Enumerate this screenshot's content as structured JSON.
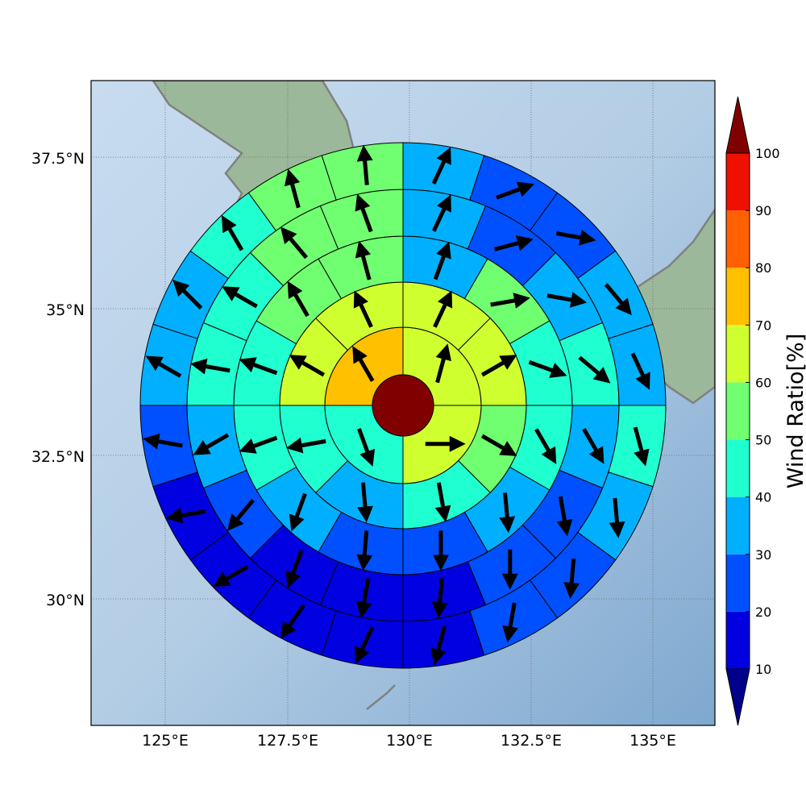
{
  "map": {
    "lat_ticks": [
      "37.5°N",
      "35°N",
      "32.5°N",
      "30°N"
    ],
    "lon_ticks": [
      "125°E",
      "127.5°E",
      "130°E",
      "132.5°E",
      "135°E"
    ],
    "ocean_color": "#a9c8e2",
    "land_color": "#9cb89a",
    "coastline_color": "#808080",
    "grid": true
  },
  "colorbar": {
    "title": "Wind Ratio[%]",
    "tick_labels": [
      "10",
      "20",
      "30",
      "40",
      "50",
      "60",
      "70",
      "80",
      "90",
      "100"
    ],
    "segments": [
      "#0000e0",
      "#0050ff",
      "#00b0ff",
      "#20ffd0",
      "#70ff70",
      "#d0ff30",
      "#ffc000",
      "#ff6000",
      "#f01000"
    ],
    "under_color": "#00008b",
    "over_color": "#800000",
    "extend": "both"
  },
  "chart_data": {
    "type": "polar-grid",
    "center": {
      "lon": 130.0,
      "lat": 33.25
    },
    "rings": 5,
    "center_disc_color": "#800000",
    "grid": [
      {
        "ring": 1,
        "sectors": 4,
        "values": [
          60,
          65,
          45,
          75
        ]
      },
      {
        "ring": 2,
        "sectors": 8,
        "values": [
          65,
          60,
          55,
          45,
          35,
          45,
          60,
          65
        ]
      },
      {
        "ring": 3,
        "sectors": 12,
        "values": [
          35,
          50,
          45,
          45,
          35,
          25,
          25,
          35,
          40,
          45,
          55,
          55
        ]
      },
      {
        "ring": 4,
        "sectors": 16,
        "values": [
          35,
          25,
          35,
          45,
          35,
          25,
          25,
          15,
          15,
          15,
          25,
          35,
          45,
          45,
          55,
          55
        ]
      },
      {
        "ring": 5,
        "sectors": 20,
        "values": [
          35,
          25,
          25,
          35,
          35,
          45,
          35,
          25,
          25,
          15,
          15,
          15,
          15,
          15,
          25,
          35,
          35,
          45,
          55,
          55
        ]
      }
    ],
    "arrow_directions_deg": {
      "ring1": [
        15,
        90,
        160,
        330
      ],
      "ring2": [
        25,
        60,
        120,
        170,
        175,
        260,
        300,
        335
      ],
      "ring3": [
        20,
        80,
        110,
        150,
        175,
        180,
        185,
        200,
        250,
        290,
        330,
        345
      ],
      "ring4": [
        25,
        75,
        100,
        130,
        150,
        170,
        180,
        185,
        190,
        200,
        220,
        240,
        280,
        300,
        320,
        340
      ],
      "ring5": [
        25,
        70,
        100,
        140,
        155,
        165,
        175,
        185,
        190,
        195,
        205,
        215,
        240,
        260,
        280,
        300,
        315,
        330,
        345,
        355
      ]
    }
  }
}
